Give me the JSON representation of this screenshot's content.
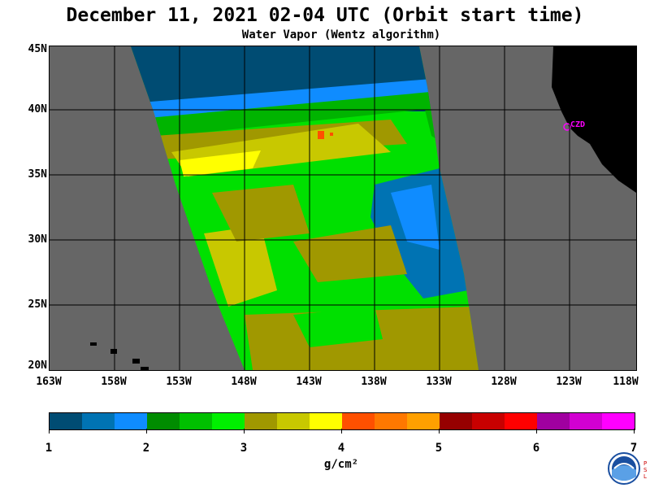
{
  "title": "December 11, 2021  02-04 UTC  (Orbit start time)",
  "subtitle": "Water Vapor (Wentz algorithm)",
  "map": {
    "latitude_labels": [
      "45N",
      "40N",
      "35N",
      "30N",
      "25N",
      "20N"
    ],
    "longitude_labels": [
      "163W",
      "158W",
      "153W",
      "148W",
      "143W",
      "138W",
      "133W",
      "128W",
      "123W",
      "118W"
    ],
    "station_label": "CZD",
    "colors": {
      "no_data": "#666666",
      "land": "#000000",
      "grid": "#000000",
      "station": "#ff00ff"
    }
  },
  "colorbar": {
    "tick_labels": [
      "1",
      "2",
      "3",
      "4",
      "5",
      "6",
      "7"
    ],
    "units": "g/cm²",
    "colors": [
      "#004c73",
      "#0073b3",
      "#0f8cff",
      "#008c00",
      "#00c000",
      "#00f000",
      "#a09800",
      "#c8c800",
      "#ffff00",
      "#ff5000",
      "#ff7800",
      "#ffa000",
      "#960000",
      "#c80000",
      "#ff0000",
      "#a000a0",
      "#d200d2",
      "#ff00ff"
    ]
  },
  "logo": {
    "name": "NOAA",
    "side_text": "PSL"
  }
}
